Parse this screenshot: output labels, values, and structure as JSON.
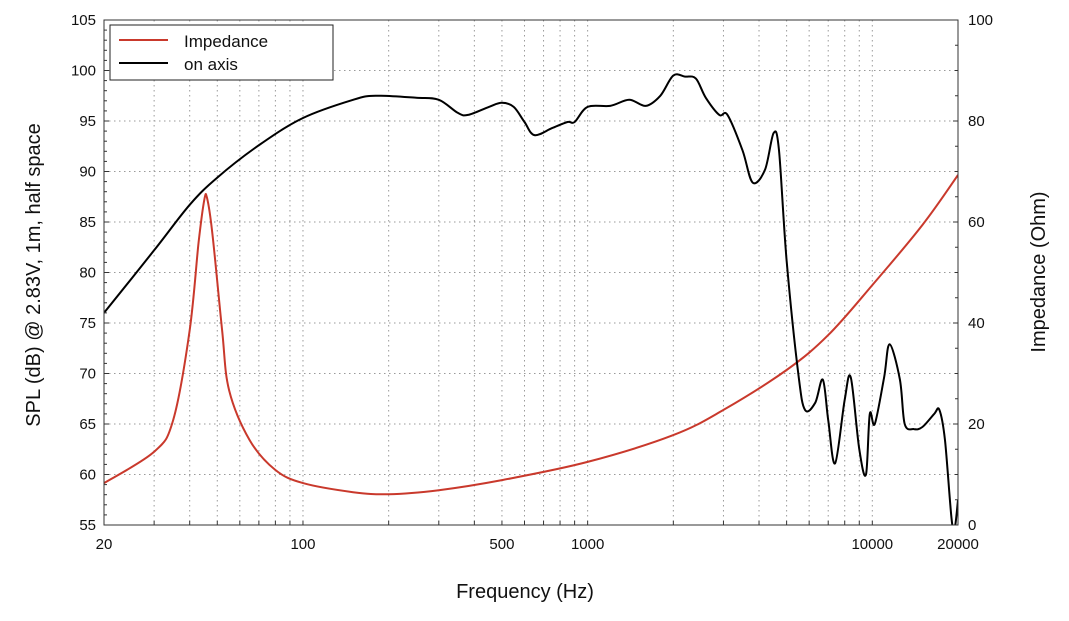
{
  "chart_data": {
    "type": "line",
    "title": "",
    "xlabel": "Frequency (Hz)",
    "ylabel": "SPL (dB) @ 2.83V, 1m, half space",
    "y2label": "Impedance (Ohm)",
    "xscale": "log",
    "xlim": [
      20,
      20000
    ],
    "ylim": [
      55,
      105
    ],
    "y2lim": [
      0,
      100
    ],
    "xticks": [
      20,
      100,
      500,
      1000,
      10000,
      20000
    ],
    "xtick_labels": [
      "20",
      "100",
      "500",
      "1000",
      "10000",
      "20000"
    ],
    "yticks": [
      55,
      60,
      65,
      70,
      75,
      80,
      85,
      90,
      95,
      100,
      105
    ],
    "y2ticks": [
      0,
      20,
      40,
      60,
      80,
      100
    ],
    "grid": true,
    "legend_position": "top-left",
    "series": [
      {
        "name": "Impedance",
        "axis": "right",
        "color": "#c9392c",
        "x": [
          20,
          30,
          35,
          40,
          43,
          45,
          46,
          48,
          52,
          55,
          65,
          80,
          100,
          150,
          200,
          300,
          500,
          1000,
          2000,
          3000,
          5000,
          7000,
          10000,
          15000,
          20000
        ],
        "y": [
          8.3,
          14.5,
          20.8,
          38.6,
          56,
          64.4,
          64.8,
          58,
          38.6,
          26.7,
          16.8,
          10.9,
          8.3,
          6.5,
          6.1,
          6.9,
          8.9,
          12.5,
          17.8,
          22.8,
          30.7,
          37.6,
          47.5,
          59.4,
          69.3
        ]
      },
      {
        "name": "on axis",
        "axis": "left",
        "color": "#000000",
        "x": [
          20,
          30,
          40,
          50,
          70,
          100,
          150,
          180,
          250,
          300,
          350,
          380,
          450,
          500,
          550,
          600,
          650,
          750,
          850,
          900,
          1000,
          1200,
          1400,
          1600,
          1800,
          2000,
          2200,
          2400,
          2600,
          2900,
          3100,
          3500,
          3800,
          4200,
          4500,
          4700,
          5000,
          5500,
          5800,
          6300,
          6700,
          7000,
          7400,
          8000,
          8400,
          9000,
          9500,
          9800,
          10200,
          11000,
          11500,
          12500,
          13000,
          14000,
          15000,
          16500,
          17200,
          18000,
          19000,
          19500,
          20000
        ],
        "y": [
          76,
          82.2,
          86.7,
          89.4,
          92.6,
          95.3,
          97.1,
          97.5,
          97.3,
          97.1,
          95.8,
          95.6,
          96.4,
          96.8,
          96.4,
          94.9,
          93.6,
          94.3,
          94.9,
          94.9,
          96.4,
          96.5,
          97.1,
          96.5,
          97.5,
          99.5,
          99.4,
          99.2,
          97.3,
          95.6,
          95.6,
          92.1,
          88.9,
          90.2,
          93.8,
          92.1,
          81.2,
          69.9,
          66.4,
          67.1,
          69.4,
          65.4,
          61.1,
          67.4,
          69.6,
          62.5,
          60,
          66,
          65,
          69.6,
          72.9,
          69.4,
          65,
          64.5,
          64.7,
          66,
          66.4,
          63.4,
          55.5,
          54.8,
          57.5
        ]
      }
    ]
  }
}
